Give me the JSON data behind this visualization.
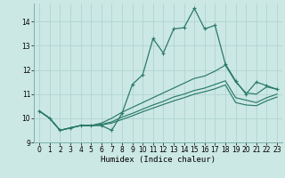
{
  "bg_color": "#cce8e4",
  "line_color": "#2a7a6a",
  "grid_color": "#afd4cf",
  "xlabel": "Humidex (Indice chaleur)",
  "xlim": [
    -0.5,
    23.5
  ],
  "ylim": [
    9.0,
    14.75
  ],
  "yticks": [
    9,
    10,
    11,
    12,
    13,
    14
  ],
  "xticks": [
    0,
    1,
    2,
    3,
    4,
    5,
    6,
    7,
    8,
    9,
    10,
    11,
    12,
    13,
    14,
    15,
    16,
    17,
    18,
    19,
    20,
    21,
    22,
    23
  ],
  "series": [
    [
      10.3,
      10.0,
      9.5,
      9.6,
      9.7,
      9.7,
      9.7,
      9.5,
      10.2,
      11.4,
      11.8,
      13.3,
      12.7,
      13.7,
      13.75,
      14.55,
      13.7,
      13.85,
      12.25,
      11.55,
      11.0,
      11.5,
      11.35,
      11.2
    ],
    [
      10.3,
      10.0,
      9.5,
      9.6,
      9.7,
      9.7,
      9.8,
      10.0,
      10.25,
      10.45,
      10.65,
      10.85,
      11.05,
      11.25,
      11.45,
      11.65,
      11.75,
      11.95,
      12.2,
      11.5,
      11.05,
      11.0,
      11.3,
      11.2
    ],
    [
      10.3,
      10.0,
      9.5,
      9.6,
      9.7,
      9.7,
      9.75,
      9.85,
      10.05,
      10.2,
      10.38,
      10.55,
      10.7,
      10.88,
      11.0,
      11.15,
      11.25,
      11.4,
      11.55,
      10.85,
      10.75,
      10.65,
      10.85,
      11.0
    ],
    [
      10.3,
      10.0,
      9.5,
      9.6,
      9.7,
      9.7,
      9.72,
      9.8,
      9.95,
      10.1,
      10.27,
      10.42,
      10.57,
      10.72,
      10.85,
      11.0,
      11.1,
      11.22,
      11.38,
      10.65,
      10.55,
      10.52,
      10.72,
      10.88
    ]
  ]
}
